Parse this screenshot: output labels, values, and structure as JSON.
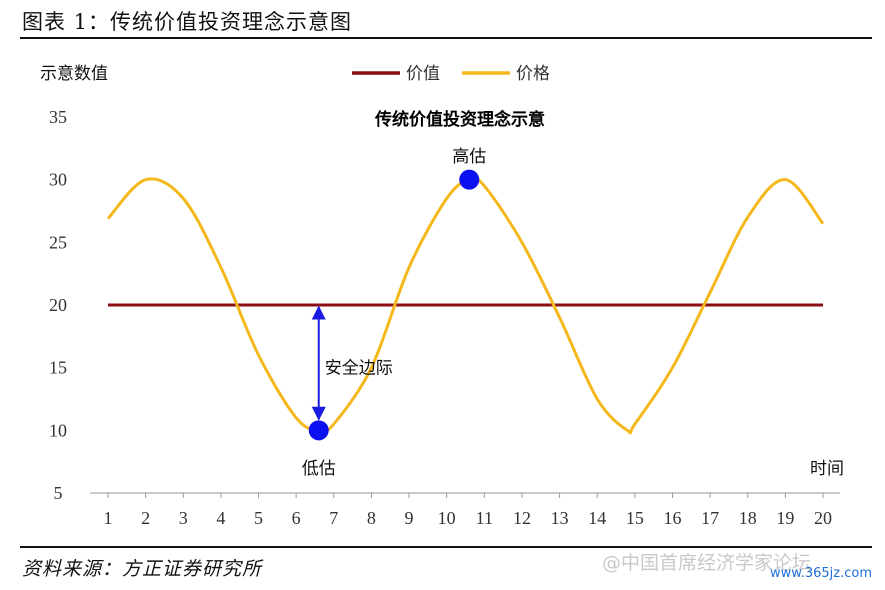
{
  "figure_title": "图表 1：传统价值投资理念示意图",
  "source": "资料来源：方正证券研究所",
  "watermark": "@中国首席经济学家论坛",
  "watermark_url": "www.365jz.com",
  "colors": {
    "value_line": "#8b0f12",
    "price_line": "#f5b81c",
    "marker": "#0a10f0",
    "arrow": "#1a1ae0"
  },
  "chart_data": {
    "type": "line",
    "title": "传统价值投资理念示意",
    "ylabel": "示意数值",
    "xlabel": "时间",
    "ylim": [
      5,
      35
    ],
    "yticks": [
      5,
      10,
      15,
      20,
      25,
      30,
      35
    ],
    "xlim": [
      1,
      20
    ],
    "xticks": [
      1,
      2,
      3,
      4,
      5,
      6,
      7,
      8,
      9,
      10,
      11,
      12,
      13,
      14,
      15,
      16,
      17,
      18,
      19,
      20
    ],
    "legend_position": "top",
    "grid": false,
    "series": [
      {
        "name": "价值",
        "x": [
          1,
          20
        ],
        "values": [
          20,
          20
        ]
      },
      {
        "name": "价格",
        "x": [
          1,
          2,
          3,
          4,
          5,
          6,
          6.6,
          7,
          8,
          9,
          10,
          10.6,
          11,
          12,
          13,
          14,
          14.8,
          15,
          16,
          17,
          18,
          19,
          20
        ],
        "values": [
          26.9,
          30,
          28.5,
          23,
          16,
          11,
          10,
          10.5,
          15,
          23,
          28.5,
          30,
          29.5,
          25,
          19,
          12.5,
          10,
          10.5,
          15,
          21,
          27,
          30,
          26.5
        ]
      }
    ],
    "annotations": [
      {
        "label": "低估",
        "x": 6.6,
        "y": 10
      },
      {
        "label": "高估",
        "x": 10.6,
        "y": 30
      },
      {
        "label": "安全边际",
        "x": 6.6,
        "y_from": 10,
        "y_to": 20
      }
    ]
  }
}
